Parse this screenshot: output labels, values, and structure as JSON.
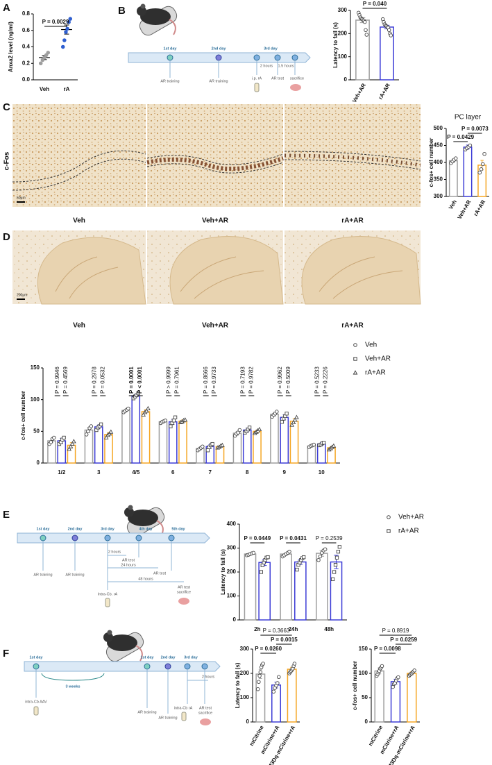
{
  "panel_labels": [
    "A",
    "B",
    "C",
    "D",
    "E",
    "F"
  ],
  "micrographs": {
    "c": {
      "row_label": "c-Fos",
      "labels": [
        "Veh",
        "Veh+AR",
        "rA+AR"
      ],
      "scale": "50μm"
    },
    "d": {
      "labels": [
        "Veh",
        "Veh+AR",
        "rA+AR"
      ],
      "scale": "200μm"
    }
  },
  "timelines": [
    {
      "days": [
        "1st day",
        "2nd day",
        "3rd day"
      ],
      "events": [
        "AR training",
        "AR training",
        "i.p. rA",
        "AR test",
        "sacrifice",
        "2 hours",
        "1.5 hours"
      ]
    },
    {
      "days": [
        "1st day",
        "2nd day",
        "3rd day",
        "4th day",
        "5th day"
      ],
      "events": [
        "AR training",
        "AR training",
        "2 hours",
        "AR test",
        "24 hours",
        "AR test",
        "48 hours",
        "AR test",
        "sacrifice",
        "Intra-Cb. rA"
      ]
    },
    {
      "days": [
        "1st day",
        "3 weeks",
        "1st day",
        "2nd day",
        "3rd day"
      ],
      "events": [
        "intra-Cb AAV",
        "AR training",
        "AR training",
        "intra-Cb rA",
        "AR test",
        "sacrifice",
        "2 hours"
      ]
    }
  ],
  "chart_data": [
    {
      "type": "dot",
      "ylabel": "Anxa2 level (ng/ml)",
      "categories": [
        "Veh",
        "rA"
      ],
      "colors": [
        "#9e9e9e",
        "#2f5fd0"
      ],
      "values": [
        0.27,
        0.61
      ],
      "errors": [
        0.025,
        0.055
      ],
      "points": [
        [
          0.2,
          0.24,
          0.27,
          0.3,
          0.33
        ],
        [
          0.4,
          0.48,
          0.58,
          0.62,
          0.7,
          0.74
        ]
      ],
      "points_filled": true,
      "ylim": [
        0,
        0.8
      ],
      "yticks": [
        {
          "value": 0,
          "label": "0.0"
        },
        0.2,
        0.4,
        0.6,
        0.8
      ],
      "annotations": [
        {
          "text": "P = 0.0029",
          "bold": true
        }
      ]
    },
    {
      "type": "bar",
      "ylabel": "Latency to fall (s)",
      "categories": [
        "Veh+AR",
        "rA+AR"
      ],
      "colors": [
        "#9e9e9e",
        "#3c3cd6"
      ],
      "values": [
        258,
        228
      ],
      "errors": [
        11,
        8
      ],
      "points": [
        [
          290,
          280,
          270,
          265,
          262,
          258,
          255,
          250,
          215,
          195
        ],
        [
          262,
          250,
          240,
          235,
          232,
          228,
          225,
          215,
          200,
          192
        ]
      ],
      "ylim": [
        0,
        300
      ],
      "yticks": [
        0,
        100,
        200,
        300
      ],
      "annotations": [
        {
          "text": "P = 0.040",
          "bold": true
        }
      ]
    },
    {
      "type": "bar",
      "title": "PC layer",
      "ylabel": "c-fos+ cell number",
      "categories": [
        "Veh",
        "Veh+AR",
        "rA+AR"
      ],
      "colors": [
        "#9e9e9e",
        "#3c3cd6",
        "#f5a623"
      ],
      "values": [
        405,
        445,
        392
      ],
      "errors": [
        5,
        6,
        14
      ],
      "points": [
        [
          398,
          403,
          408,
          412
        ],
        [
          438,
          442,
          446,
          450
        ],
        [
          370,
          380,
          395,
          425
        ]
      ],
      "ylim": [
        300,
        500
      ],
      "yticks": [
        300,
        350,
        400,
        450,
        500
      ],
      "annotations": [
        {
          "text": "P = 0.0429",
          "bold": true
        },
        {
          "text": "P = 0.0073",
          "bold": true
        }
      ]
    },
    {
      "type": "bar",
      "ylabel": "c-fos+ cell number",
      "categories": [
        "1/2",
        "3",
        "4/5",
        "6",
        "7",
        "8",
        "9",
        "10"
      ],
      "legend": "right",
      "series": [
        {
          "name": "Veh",
          "color": "#9e9e9e",
          "marker": "circle",
          "values": [
            35,
            52,
            83,
            65,
            23,
            47,
            77,
            27
          ],
          "errors": [
            3,
            4,
            2,
            2,
            2,
            3,
            3,
            2
          ],
          "points": [
            [
              30,
              33,
              38,
              40
            ],
            [
              45,
              50,
              55,
              58
            ],
            [
              80,
              82,
              84,
              86
            ],
            [
              63,
              65,
              66,
              67
            ],
            [
              20,
              22,
              24,
              26
            ],
            [
              43,
              46,
              48,
              52
            ],
            [
              73,
              76,
              78,
              81
            ],
            [
              25,
              27,
              28,
              29
            ]
          ]
        },
        {
          "name": "Veh+AR",
          "color": "#3c3cd6",
          "marker": "square",
          "values": [
            35,
            57,
            106,
            65,
            26,
            52,
            72,
            30
          ],
          "errors": [
            4,
            3,
            2,
            4,
            3,
            3,
            4,
            2
          ],
          "points": [
            [
              30,
              33,
              37,
              40
            ],
            [
              52,
              56,
              58,
              61
            ],
            [
              102,
              105,
              107,
              110
            ],
            [
              58,
              63,
              67,
              72
            ],
            [
              20,
              25,
              28,
              30
            ],
            [
              48,
              50,
              53,
              56
            ],
            [
              65,
              70,
              74,
              78
            ],
            [
              28,
              29,
              31,
              32
            ]
          ]
        },
        {
          "name": "rA+AR",
          "color": "#f5a623",
          "marker": "triangle",
          "values": [
            28,
            45,
            81,
            66,
            26,
            50,
            66,
            24
          ],
          "errors": [
            4,
            3,
            3,
            2,
            1,
            2,
            4,
            2
          ],
          "points": [
            [
              22,
              26,
              30,
              34
            ],
            [
              40,
              44,
              46,
              49
            ],
            [
              76,
              80,
              82,
              86
            ],
            [
              64,
              65,
              67,
              68
            ],
            [
              24,
              25,
              27,
              28
            ],
            [
              47,
              49,
              51,
              53
            ],
            [
              60,
              64,
              68,
              72
            ],
            [
              21,
              23,
              25,
              27
            ]
          ]
        }
      ],
      "ylim": [
        0,
        150
      ],
      "yticks": [
        0,
        50,
        100,
        150
      ],
      "annotations": [
        {
          "text": "P = 0.9946",
          "bold": false
        },
        {
          "text": "P = 0.4569",
          "bold": false
        },
        {
          "text": "P = 0.2978",
          "bold": false
        },
        {
          "text": "P = 0.0532",
          "bold": false
        },
        {
          "text": "P = 0.0001",
          "bold": true
        },
        {
          "text": "P < 0.0001",
          "bold": true
        },
        {
          "text": "P > 0.9999",
          "bold": false
        },
        {
          "text": "P = 0.7961",
          "bold": false
        },
        {
          "text": "P = 0.8666",
          "bold": false
        },
        {
          "text": "P = 0.9733",
          "bold": false
        },
        {
          "text": "P = 0.7193",
          "bold": false
        },
        {
          "text": "P = 0.9782",
          "bold": false
        },
        {
          "text": "P = 0.9962",
          "bold": false
        },
        {
          "text": "P = 0.5009",
          "bold": false
        },
        {
          "text": "P = 0.5233",
          "bold": false
        },
        {
          "text": "P = 0.2226",
          "bold": false
        }
      ]
    },
    {
      "type": "bar",
      "ylabel": "Latency to fall (s)",
      "categories": [
        "2h",
        "24h",
        "48h"
      ],
      "legend": "right",
      "series": [
        {
          "name": "Veh+AR",
          "color": "#9e9e9e",
          "marker": "circle",
          "values": [
            275,
            275,
            278
          ],
          "errors": [
            3,
            4,
            12
          ],
          "points": [
            [
              270,
              272,
              275,
              278,
              280
            ],
            [
              265,
              270,
              275,
              280,
              285
            ],
            [
              250,
              265,
              280,
              290,
              295
            ]
          ]
        },
        {
          "name": "rA+AR",
          "color": "#3c3cd6",
          "marker": "square",
          "values": [
            240,
            242,
            242
          ],
          "errors": [
            13,
            10,
            28
          ],
          "points": [
            [
              200,
              228,
              240,
              250,
              260,
              262
            ],
            [
              210,
              230,
              240,
              250,
              258,
              262
            ],
            [
              170,
              200,
              230,
              260,
              285,
              305
            ]
          ]
        }
      ],
      "ylim": [
        0,
        400
      ],
      "yticks": [
        0,
        100,
        200,
        300,
        400
      ],
      "annotations": [
        {
          "text": "P = 0.0449",
          "bold": true
        },
        {
          "text": "P = 0.0431",
          "bold": true
        },
        {
          "text": "P = 0.2539",
          "bold": false
        }
      ]
    },
    {
      "type": "bar",
      "ylabel": "Latency to fall (s)",
      "categories": [
        "mCitrine",
        "mCitrine+rA",
        "hM3Dq-mCitrine+rA"
      ],
      "colors": [
        "#9e9e9e",
        "#3c3cd6",
        "#f5a623"
      ],
      "values": [
        197,
        152,
        217
      ],
      "errors": [
        18,
        12,
        8
      ],
      "points": [
        [
          135,
          165,
          190,
          205,
          225,
          235,
          240
        ],
        [
          125,
          140,
          150,
          160,
          185
        ],
        [
          200,
          205,
          210,
          215,
          220,
          230,
          240
        ]
      ],
      "ylim": [
        0,
        300
      ],
      "yticks": [
        0,
        100,
        200,
        300
      ],
      "annotations": [
        {
          "text": "P = 0.3663",
          "bold": false
        },
        {
          "text": "P = 0.0260",
          "bold": true
        },
        {
          "text": "P = 0.0015",
          "bold": true
        }
      ]
    },
    {
      "type": "bar",
      "ylabel": "c-fos+ cell number",
      "categories": [
        "mCitrine",
        "mCitrine+rA",
        "hM3Dq-mCitrine+rA"
      ],
      "colors": [
        "#9e9e9e",
        "#3c3cd6",
        "#f5a623"
      ],
      "values": [
        105,
        83,
        100
      ],
      "errors": [
        6,
        5,
        3
      ],
      "points": [
        [
          95,
          98,
          102,
          105,
          110,
          112,
          115
        ],
        [
          72,
          78,
          80,
          85,
          90,
          92
        ],
        [
          95,
          97,
          99,
          100,
          102,
          104,
          106
        ]
      ],
      "ylim": [
        0,
        150
      ],
      "yticks": [
        0,
        50,
        100,
        150
      ],
      "annotations": [
        {
          "text": "P = 0.8919",
          "bold": false
        },
        {
          "text": "P = 0.0098",
          "bold": true
        },
        {
          "text": "P = 0.0259",
          "bold": true
        }
      ]
    }
  ]
}
